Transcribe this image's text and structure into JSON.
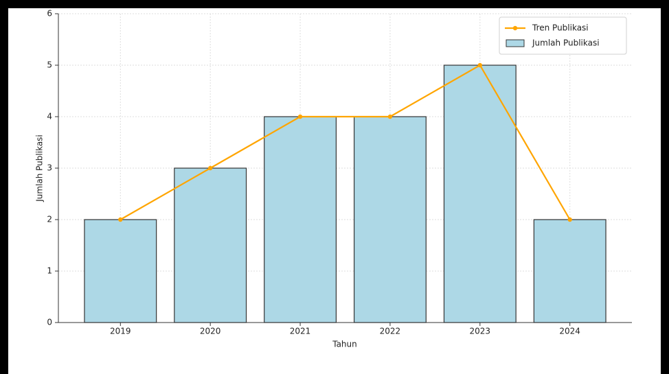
{
  "chart_data": {
    "type": "bar",
    "x_label": "Tahun",
    "y_label": "Jumlah Publikasi",
    "categories": [
      "2019",
      "2020",
      "2021",
      "2022",
      "2023",
      "2024"
    ],
    "series": [
      {
        "name": "Tren Publikasi",
        "type": "line",
        "color": "#ffa500",
        "values": [
          2,
          3,
          4,
          4,
          5,
          2
        ]
      },
      {
        "name": "Jumlah Publikasi",
        "type": "bar",
        "color": "#add8e6",
        "values": [
          2,
          3,
          4,
          4,
          5,
          2
        ]
      }
    ],
    "ylim": [
      0,
      6
    ],
    "yticks": [
      0,
      1,
      2,
      3,
      4,
      5,
      6
    ],
    "grid": true,
    "legend": "upper right"
  }
}
